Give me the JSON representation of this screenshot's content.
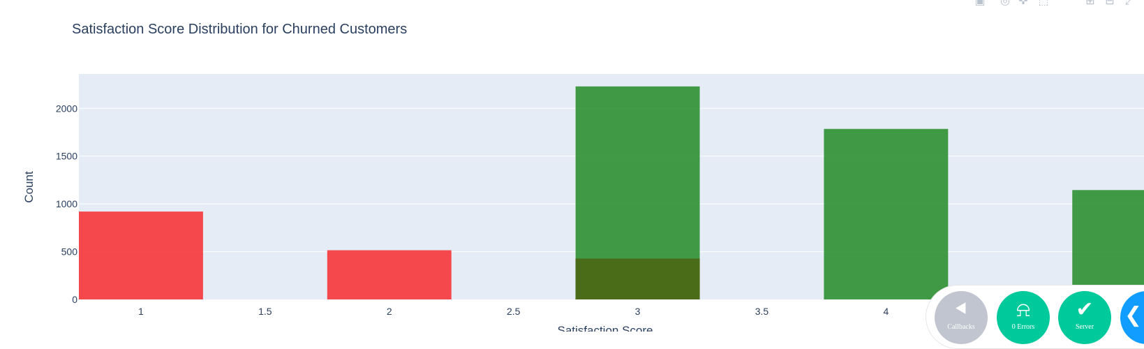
{
  "chart_data": {
    "type": "bar",
    "title": "Satisfaction Score Distribution for Churned Customers",
    "xlabel": "Satisfaction Score",
    "ylabel": "Count",
    "xlim": [
      0.75,
      5.05
    ],
    "ylim": [
      0,
      2360
    ],
    "x_ticks": [
      "1",
      "1.5",
      "2",
      "2.5",
      "3",
      "3.5",
      "4"
    ],
    "y_ticks": [
      "0",
      "500",
      "1000",
      "1500",
      "2000"
    ],
    "grid": true,
    "bar_width": 0.5,
    "series": [
      {
        "color": "#f5363b",
        "opacity": 0.9,
        "points": [
          {
            "x": 1,
            "y": 920
          },
          {
            "x": 2,
            "y": 515
          },
          {
            "x": 3,
            "y": 428
          }
        ]
      },
      {
        "color": "#2e9132",
        "opacity": 0.9,
        "points": [
          {
            "x": 3,
            "y": 2230
          },
          {
            "x": 4,
            "y": 1785
          },
          {
            "x": 5,
            "y": 1145
          }
        ]
      }
    ]
  },
  "colors": {
    "plot_bg": "#e5ecf6",
    "grid": "#ffffff",
    "text": "#2a3f5f",
    "overlap": "#4a6b17"
  },
  "modebar": {
    "icons": [
      "camera-icon",
      "zoom-icon",
      "pan-icon",
      "box-select-icon",
      "lasso-icon",
      "zoom-in-icon",
      "zoom-out-icon",
      "autoscale-icon"
    ]
  },
  "debug_menu": {
    "callbacks_label": "Callbacks",
    "errors_label": "0 Errors",
    "server_label": "Server",
    "callbacks_color": "#c0c5cf",
    "errors_color": "#00c99b",
    "server_color": "#00c99b",
    "toggle_color": "#119dff"
  }
}
